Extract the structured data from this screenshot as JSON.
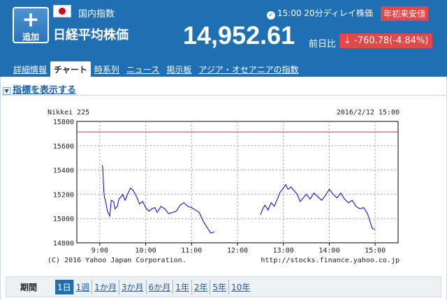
{
  "header": {
    "add_button": {
      "icon": "plus-icon",
      "label": "追加"
    },
    "flag_icon": "japan-flag-icon",
    "category": "国内指数",
    "index_name": "日経平均株価",
    "delay_text": "15:00 20分ディレイ株価",
    "low_badge": "年初来安値",
    "price": "14,952.61",
    "prev_label": "前日比",
    "change": "↓ -760.78(-4.84%)"
  },
  "tabs": [
    {
      "label": "詳細情報",
      "active": false
    },
    {
      "label": "チャート",
      "active": true
    },
    {
      "label": "時系列",
      "active": false
    },
    {
      "label": "ニュース",
      "active": false
    },
    {
      "label": "掲示板",
      "active": false
    },
    {
      "label": "アジア・オセアニアの指数",
      "active": false
    }
  ],
  "indicator_link": "指標を表示する",
  "period": {
    "label": "期間",
    "items": [
      {
        "label": "1日",
        "active": true
      },
      {
        "label": "1週",
        "active": false
      },
      {
        "label": "1か月",
        "active": false
      },
      {
        "label": "3か月",
        "active": false
      },
      {
        "label": "6か月",
        "active": false
      },
      {
        "label": "1年",
        "active": false
      },
      {
        "label": "2年",
        "active": false
      },
      {
        "label": "5年",
        "active": false
      },
      {
        "label": "10年",
        "active": false
      }
    ]
  },
  "colors": {
    "header_bg": "#1f6fb3",
    "down": "#e0484a",
    "line": "#0000cc",
    "ref_line": "#e03030"
  },
  "chart_data": {
    "type": "line",
    "title": "Nikkei 225",
    "timestamp": "2016/2/12 15:00",
    "copyright": "(C) 2016 Yahoo Japan Corporation.",
    "url": "http://stocks.finance.yahoo.co.jp",
    "xlim": [
      "08:30",
      "15:30"
    ],
    "ylim": [
      14800,
      15800
    ],
    "x_ticks": [
      "9:00",
      "10:00",
      "11:00",
      "12:00",
      "13:00",
      "14:00",
      "15:00"
    ],
    "y_ticks": [
      15800,
      15600,
      15400,
      15200,
      15000,
      14800
    ],
    "reference_line": 15713,
    "series": [
      {
        "session": "morning",
        "x": [
          "09:03",
          "09:04",
          "09:05",
          "09:06",
          "09:08",
          "09:10",
          "09:13",
          "09:15",
          "09:18",
          "09:20",
          "09:23",
          "09:25",
          "09:28",
          "09:30",
          "09:33",
          "09:37",
          "09:40",
          "09:44",
          "09:48",
          "09:52",
          "09:56",
          "10:00",
          "10:04",
          "10:08",
          "10:12",
          "10:15",
          "10:20",
          "10:25",
          "10:30",
          "10:35",
          "10:40",
          "10:45",
          "10:50",
          "10:55",
          "11:00",
          "11:05",
          "11:10",
          "11:15",
          "11:20",
          "11:25",
          "11:30"
        ],
        "y": [
          15440,
          15420,
          15250,
          15180,
          15130,
          15060,
          15020,
          15150,
          15140,
          15080,
          15100,
          15160,
          15180,
          15200,
          15150,
          15210,
          15250,
          15230,
          15180,
          15120,
          15140,
          15090,
          15060,
          15080,
          15090,
          15050,
          15100,
          15080,
          15040,
          15050,
          15060,
          15110,
          15130,
          15100,
          15090,
          15070,
          15050,
          14980,
          14930,
          14880,
          14890
        ]
      },
      {
        "session": "afternoon",
        "x": [
          "12:30",
          "12:33",
          "12:36",
          "12:40",
          "12:44",
          "12:48",
          "12:52",
          "12:56",
          "13:00",
          "13:03",
          "13:06",
          "13:10",
          "13:14",
          "13:18",
          "13:22",
          "13:26",
          "13:30",
          "13:35",
          "13:40",
          "13:45",
          "13:50",
          "13:55",
          "14:00",
          "14:05",
          "14:10",
          "14:15",
          "14:20",
          "14:25",
          "14:30",
          "14:35",
          "14:40",
          "14:45",
          "14:50",
          "14:53",
          "14:56",
          "15:00"
        ],
        "y": [
          15030,
          15080,
          15110,
          15070,
          15130,
          15100,
          15160,
          15220,
          15250,
          15280,
          15240,
          15260,
          15230,
          15200,
          15140,
          15170,
          15200,
          15160,
          15210,
          15180,
          15150,
          15190,
          15240,
          15200,
          15170,
          15210,
          15160,
          15130,
          15150,
          15100,
          15080,
          15090,
          15040,
          14980,
          14920,
          14910
        ]
      }
    ]
  }
}
